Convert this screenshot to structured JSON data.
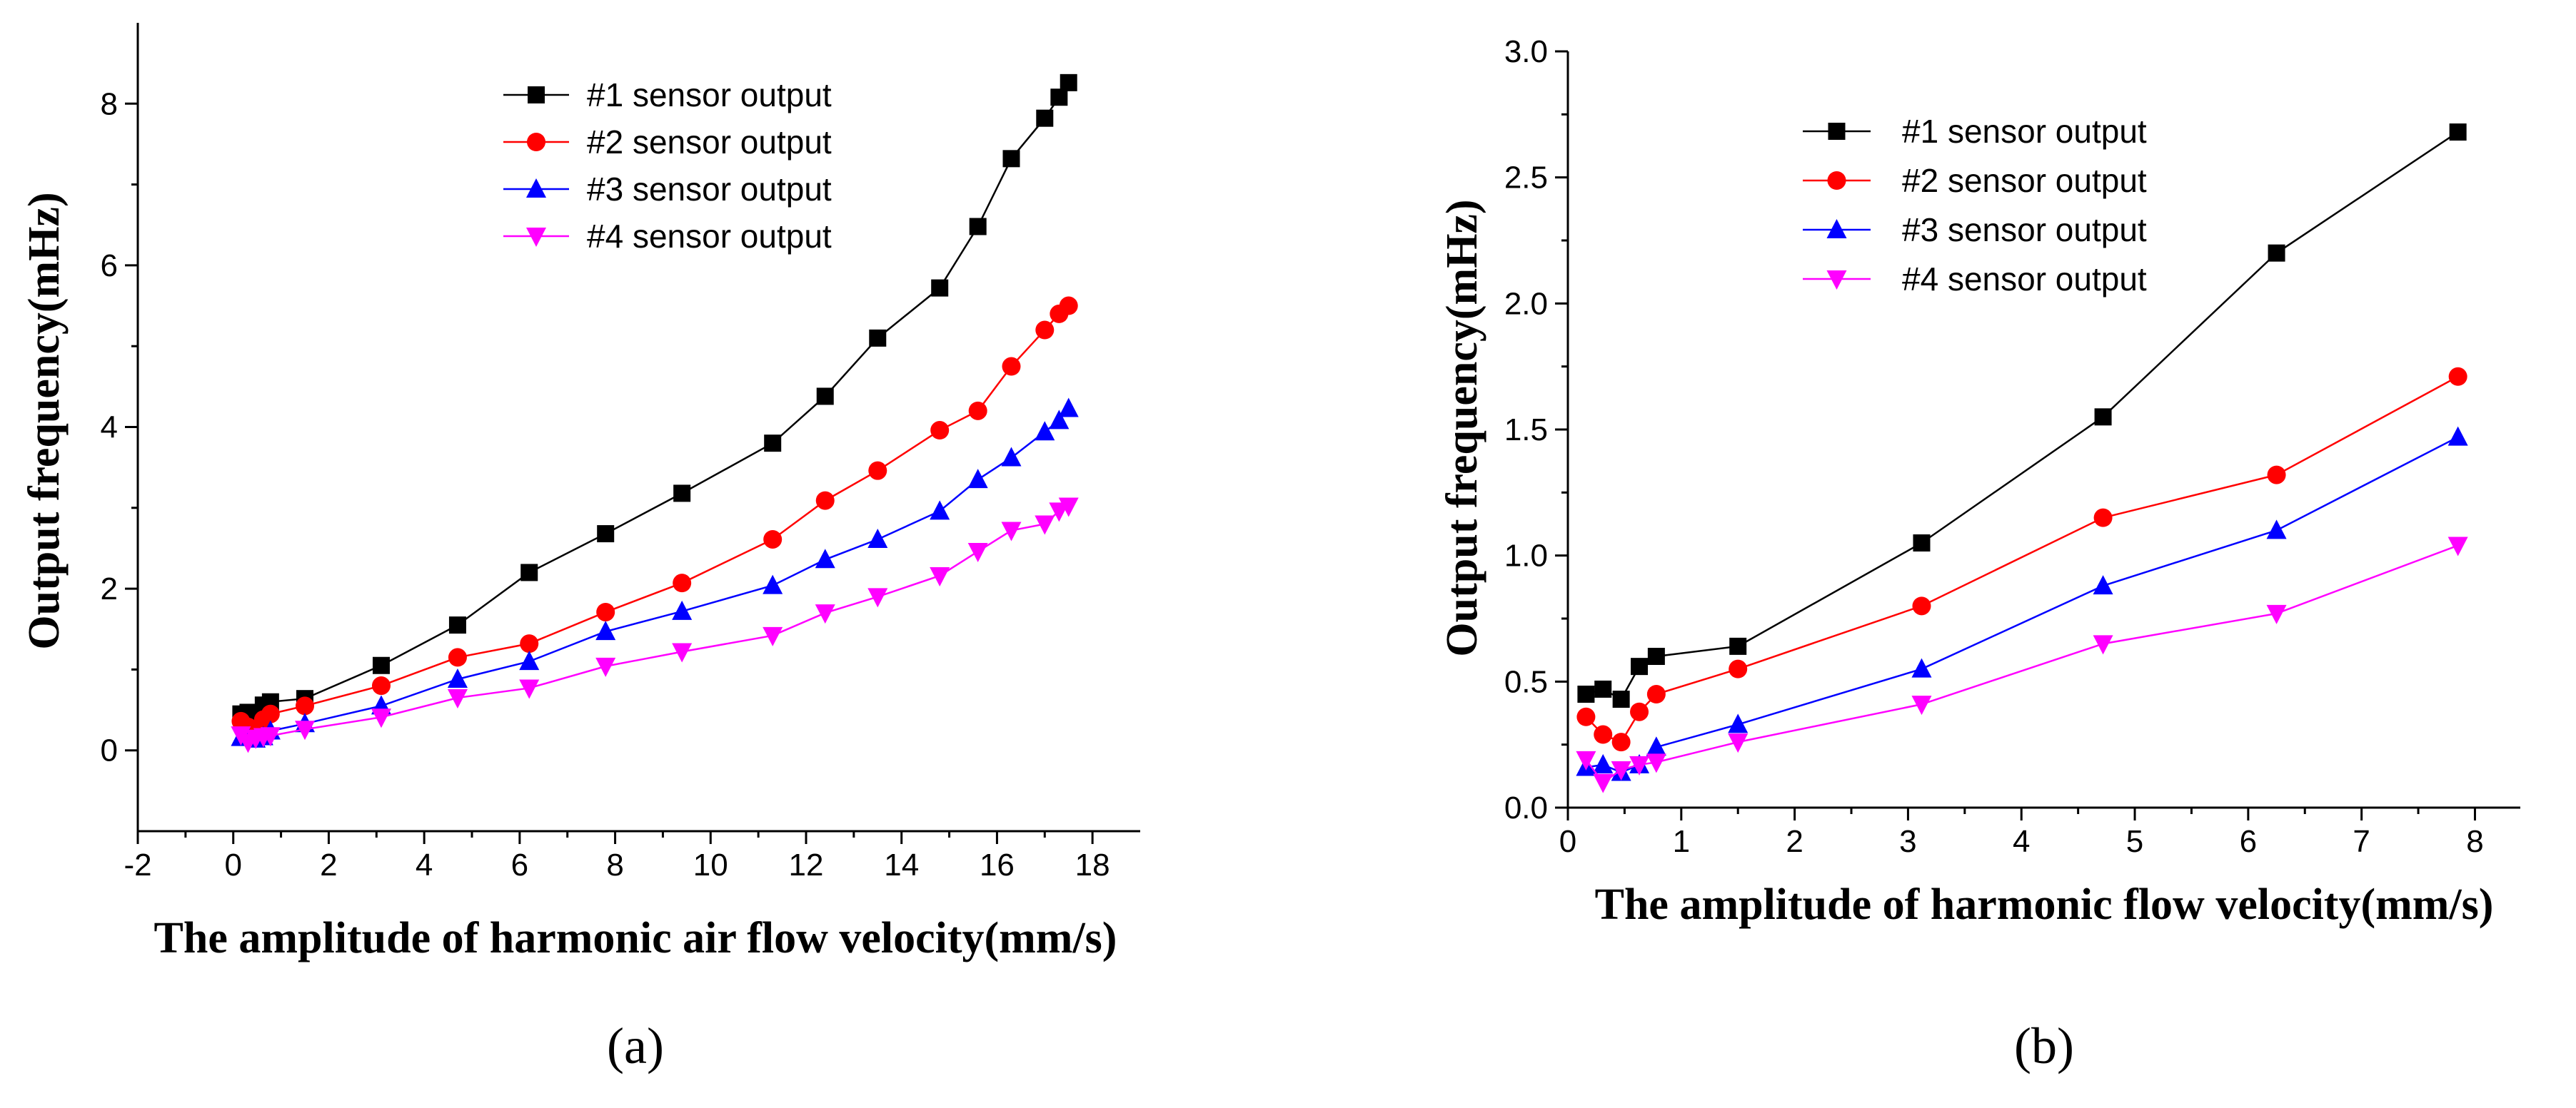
{
  "chart_data": [
    {
      "type": "line",
      "panel_label": "(a)",
      "xlabel": "The amplitude of harmonic air flow velocity(mm/s)",
      "ylabel": "Output frequency(mHz)",
      "xlim": [
        -2,
        19
      ],
      "ylim": [
        -1,
        9
      ],
      "xticks": [
        -2,
        0,
        2,
        4,
        6,
        8,
        10,
        12,
        14,
        16,
        18
      ],
      "yticks": [
        0,
        2,
        4,
        6,
        8
      ],
      "legend_position": "top-center",
      "series": [
        {
          "name": "#1 sensor output",
          "color": "#000000",
          "marker": "square",
          "x": [
            0.16,
            0.31,
            0.47,
            0.63,
            0.78,
            1.5,
            3.1,
            4.7,
            6.2,
            7.8,
            9.4,
            11.3,
            12.4,
            13.5,
            14.8,
            15.6,
            16.3,
            17.0,
            17.3,
            17.5
          ],
          "y": [
            0.45,
            0.47,
            0.43,
            0.56,
            0.6,
            0.64,
            1.05,
            1.55,
            2.2,
            2.68,
            3.18,
            3.8,
            4.38,
            5.1,
            5.72,
            6.48,
            7.32,
            7.82,
            8.08,
            8.26
          ]
        },
        {
          "name": "#2 sensor output",
          "color": "#ff0000",
          "marker": "circle",
          "x": [
            0.16,
            0.31,
            0.47,
            0.63,
            0.78,
            1.5,
            3.1,
            4.7,
            6.2,
            7.8,
            9.4,
            11.3,
            12.4,
            13.5,
            14.8,
            15.6,
            16.3,
            17.0,
            17.3,
            17.5
          ],
          "y": [
            0.36,
            0.29,
            0.26,
            0.38,
            0.45,
            0.55,
            0.8,
            1.15,
            1.32,
            1.71,
            2.07,
            2.61,
            3.09,
            3.46,
            3.96,
            4.2,
            4.75,
            5.2,
            5.4,
            5.5
          ]
        },
        {
          "name": "#3 sensor output",
          "color": "#0000ff",
          "marker": "triangle-up",
          "x": [
            0.16,
            0.31,
            0.47,
            0.63,
            0.78,
            1.5,
            3.1,
            4.7,
            6.2,
            7.8,
            9.4,
            11.3,
            12.4,
            13.5,
            14.8,
            15.6,
            16.3,
            17.0,
            17.3,
            17.5
          ],
          "y": [
            0.16,
            0.17,
            0.14,
            0.17,
            0.24,
            0.33,
            0.55,
            0.88,
            1.1,
            1.47,
            1.72,
            2.04,
            2.36,
            2.61,
            2.96,
            3.35,
            3.62,
            3.94,
            4.08,
            4.23
          ]
        },
        {
          "name": "#4 sensor output",
          "color": "#ff00ff",
          "marker": "triangle-down",
          "x": [
            0.16,
            0.31,
            0.47,
            0.63,
            0.78,
            1.5,
            3.1,
            4.7,
            6.2,
            7.8,
            9.4,
            11.3,
            12.4,
            13.5,
            14.8,
            15.6,
            16.3,
            17.0,
            17.3,
            17.5
          ],
          "y": [
            0.19,
            0.1,
            0.15,
            0.17,
            0.18,
            0.26,
            0.41,
            0.65,
            0.77,
            1.04,
            1.22,
            1.42,
            1.7,
            1.9,
            2.16,
            2.46,
            2.72,
            2.8,
            2.96,
            3.02
          ]
        }
      ]
    },
    {
      "type": "line",
      "panel_label": "(b)",
      "xlabel": "The amplitude of harmonic flow velocity(mm/s)",
      "ylabel": "Output frequency(mHz)",
      "xlim": [
        0,
        8.4
      ],
      "ylim": [
        0,
        3.0
      ],
      "xticks": [
        0,
        1,
        2,
        3,
        4,
        5,
        6,
        7,
        8
      ],
      "yticks": [
        0.0,
        0.5,
        1.0,
        1.5,
        2.0,
        2.5,
        3.0
      ],
      "yticklabels": [
        "0.0",
        "0.5",
        "1.0",
        "1.5",
        "2.0",
        "2.5",
        "3.0"
      ],
      "legend_position": "top-center",
      "series": [
        {
          "name": "#1 sensor output",
          "color": "#000000",
          "marker": "square",
          "x": [
            0.16,
            0.31,
            0.47,
            0.63,
            0.78,
            1.5,
            3.12,
            4.72,
            6.25,
            7.85
          ],
          "y": [
            0.45,
            0.47,
            0.43,
            0.56,
            0.6,
            0.64,
            1.05,
            1.55,
            2.2,
            2.68
          ]
        },
        {
          "name": "#2 sensor output",
          "color": "#ff0000",
          "marker": "circle",
          "x": [
            0.16,
            0.31,
            0.47,
            0.63,
            0.78,
            1.5,
            3.12,
            4.72,
            6.25,
            7.85
          ],
          "y": [
            0.36,
            0.29,
            0.26,
            0.38,
            0.45,
            0.55,
            0.8,
            1.15,
            1.32,
            1.71
          ]
        },
        {
          "name": "#3 sensor output",
          "color": "#0000ff",
          "marker": "triangle-up",
          "x": [
            0.16,
            0.31,
            0.47,
            0.63,
            0.78,
            1.5,
            3.12,
            4.72,
            6.25,
            7.85
          ],
          "y": [
            0.16,
            0.17,
            0.14,
            0.17,
            0.24,
            0.33,
            0.55,
            0.88,
            1.1,
            1.47
          ]
        },
        {
          "name": "#4 sensor output",
          "color": "#ff00ff",
          "marker": "triangle-down",
          "x": [
            0.16,
            0.31,
            0.47,
            0.63,
            0.78,
            1.5,
            3.12,
            4.72,
            6.25,
            7.85
          ],
          "y": [
            0.19,
            0.1,
            0.15,
            0.17,
            0.18,
            0.26,
            0.41,
            0.65,
            0.77,
            1.04
          ]
        }
      ]
    }
  ]
}
